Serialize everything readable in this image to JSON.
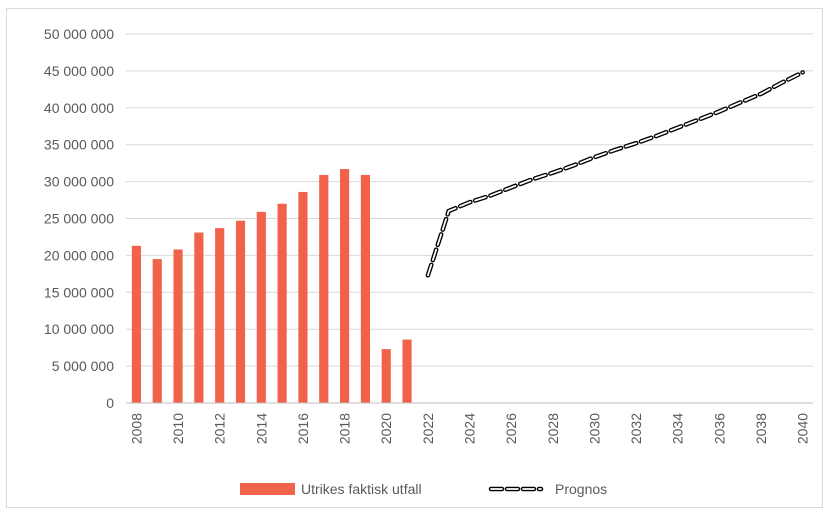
{
  "chart_data": {
    "type": "bar",
    "title": "",
    "xlabel": "",
    "ylabel": "",
    "ylim": [
      0,
      50000000
    ],
    "y_ticks": [
      "0",
      "5 000 000",
      "10 000 000",
      "15 000 000",
      "20 000 000",
      "25 000 000",
      "30 000 000",
      "35 000 000",
      "40 000 000",
      "45 000 000",
      "50 000 000"
    ],
    "x_ticks": [
      "2008",
      "2010",
      "2012",
      "2014",
      "2016",
      "2018",
      "2020",
      "2022",
      "2024",
      "2026",
      "2028",
      "2030",
      "2032",
      "2034",
      "2036",
      "2038",
      "2040"
    ],
    "grid": "horizontal",
    "legend_position": "bottom",
    "series": [
      {
        "name": "Utrikes faktisk utfall",
        "kind": "bar",
        "color": "#f0634a",
        "x": [
          2008,
          2009,
          2010,
          2011,
          2012,
          2013,
          2014,
          2015,
          2016,
          2017,
          2018,
          2019,
          2020,
          2021
        ],
        "values": [
          21300000,
          19500000,
          20800000,
          23100000,
          23700000,
          24700000,
          25900000,
          27000000,
          28600000,
          30900000,
          31700000,
          30900000,
          7300000,
          8600000
        ]
      },
      {
        "name": "Prognos",
        "kind": "line-dashed",
        "color": "#000000",
        "x": [
          2022,
          2023,
          2024,
          2025,
          2026,
          2027,
          2028,
          2029,
          2030,
          2031,
          2032,
          2033,
          2034,
          2035,
          2036,
          2037,
          2038,
          2039,
          2040
        ],
        "values": [
          17300000,
          26000000,
          27200000,
          28100000,
          29200000,
          30300000,
          31200000,
          32200000,
          33300000,
          34300000,
          35200000,
          36200000,
          37300000,
          38400000,
          39500000,
          40700000,
          41900000,
          43400000,
          44800000
        ]
      }
    ]
  }
}
